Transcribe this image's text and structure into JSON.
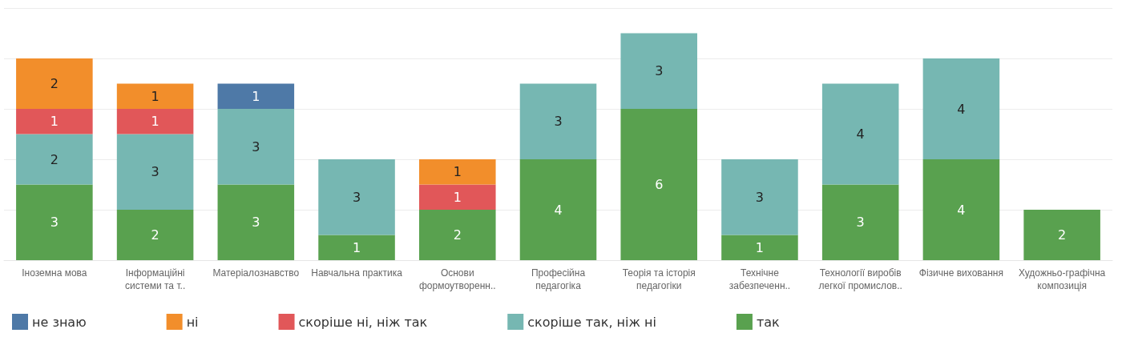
{
  "chart_data": {
    "type": "bar",
    "stacked": true,
    "data_labels": true,
    "grid": "y",
    "legend": "bottom",
    "tick_labels": "x",
    "categories": [
      "Іноземна мова",
      "Інформаційні системи та т..",
      "Матеріалознавство",
      "Навчальна практика",
      "Основи формоутворенн..",
      "Професійна педагогіка",
      "Теорія та історія педагогіки",
      "Технічне забезпеченн..",
      "Технології виробів легкої промислов..",
      "Фізичне виховання",
      "Художньо-графічна композиція"
    ],
    "ylim": [
      0,
      10
    ],
    "yticks": [
      {
        "value": 0,
        "label": null
      },
      {
        "value": 2,
        "label": null
      },
      {
        "value": 4,
        "label": null
      },
      {
        "value": 6,
        "label": null
      },
      {
        "value": 8,
        "label": null
      },
      {
        "value": 10,
        "label": null
      }
    ],
    "series": [
      {
        "name": "так",
        "color": "#59a14f",
        "values": [
          3,
          2,
          3,
          1,
          2,
          4,
          6,
          1,
          3,
          4,
          2
        ]
      },
      {
        "name": "скоріше так, ніж ні",
        "color": "#76b7b2",
        "values": [
          2,
          3,
          3,
          3,
          null,
          3,
          3,
          3,
          4,
          4,
          null
        ]
      },
      {
        "name": "скоріше ні, ніж так",
        "color": "#e15759",
        "values": [
          1,
          1,
          null,
          null,
          1,
          null,
          null,
          null,
          null,
          null,
          null
        ]
      },
      {
        "name": "ні",
        "color": "#f28e2b",
        "values": [
          2,
          1,
          null,
          null,
          1,
          null,
          null,
          null,
          null,
          null,
          null
        ]
      },
      {
        "name": "не знаю",
        "color": "#4e79a7",
        "values": [
          null,
          null,
          1,
          null,
          null,
          null,
          null,
          null,
          null,
          null,
          null
        ]
      }
    ]
  }
}
